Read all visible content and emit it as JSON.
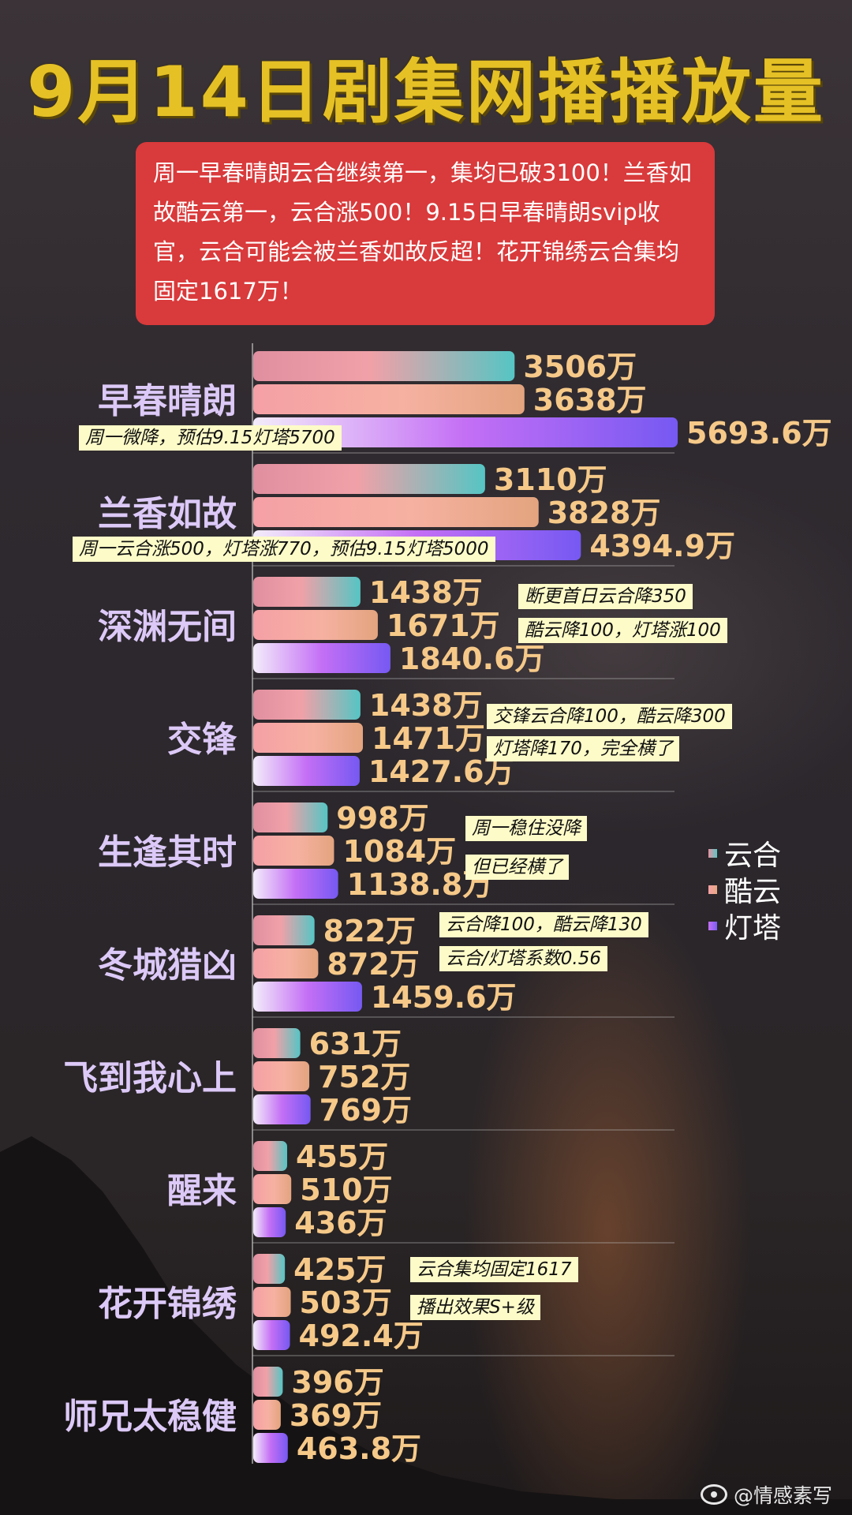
{
  "header": {
    "title": "9月14日剧集网播播放量",
    "summary": "周一早春晴朗云合继续第一，集均已破3100！兰香如故酷云第一，云合涨500！9.15日早春晴朗svip收官，云合可能会被兰香如故反超！花开锦绣云合集均固定1617万！"
  },
  "colors": {
    "yunhe": [
      "#e493a4",
      "#5dc6c4"
    ],
    "kuyun": [
      "#f5a1a6",
      "#e8a882"
    ],
    "dengta": [
      "#f1ebf8",
      "#c670f5",
      "#7a5cf3"
    ],
    "title": "#e6c126",
    "summary_bg": "#d93a3b",
    "note_bg": "#fdfbc8",
    "category_text": "#dcc9f7",
    "value_text": "#f6c989"
  },
  "chart_data": {
    "type": "bar",
    "orientation": "horizontal",
    "unit": "万",
    "categories": [
      "早春晴朗",
      "兰香如故",
      "深渊无间",
      "交锋",
      "生逢其时",
      "冬城猎凶",
      "飞到我心上",
      "醒来",
      "花开锦绣",
      "师兄太稳健"
    ],
    "series": [
      {
        "name": "云合",
        "values": [
          3506,
          3110,
          1438,
          1438,
          998,
          822,
          631,
          455,
          425,
          396
        ]
      },
      {
        "name": "酷云",
        "values": [
          3638,
          3828,
          1671,
          1471,
          1084,
          872,
          752,
          510,
          503,
          369
        ]
      },
      {
        "name": "灯塔",
        "values": [
          5693.6,
          4394.9,
          1840.6,
          1427.6,
          1138.8,
          1459.6,
          769,
          436,
          492.4,
          463.8
        ]
      }
    ],
    "value_labels": [
      [
        "3506万",
        "3638万",
        "5693.6万"
      ],
      [
        "3110万",
        "3828万",
        "4394.9万"
      ],
      [
        "1438万",
        "1671万",
        "1840.6万"
      ],
      [
        "1438万",
        "1471万",
        "1427.6万"
      ],
      [
        "998万",
        "1084万",
        "1138.8万"
      ],
      [
        "822万",
        "872万",
        "1459.6万"
      ],
      [
        "631万",
        "752万",
        "769万"
      ],
      [
        "455万",
        "510万",
        "436万"
      ],
      [
        "425万",
        "503万",
        "492.4万"
      ],
      [
        "396万",
        "369万",
        "463.8万"
      ]
    ],
    "legend": [
      "云合",
      "酷云",
      "灯塔"
    ],
    "legend_position": "right"
  },
  "notes": {
    "zaochun": "周一微降，预估9.15灯塔5700",
    "lanxiang": "周一云合涨500，灯塔涨770，预估9.15灯塔5000",
    "shenyuan_1": "断更首日云合降350",
    "shenyuan_2": "酷云降100，灯塔涨100",
    "jiaofeng_1": "交锋云合降100，酷云降300",
    "jiaofeng_2": "灯塔降170，完全横了",
    "shengfeng_1": "周一稳住没降",
    "shengfeng_2": "但已经横了",
    "dongcheng_1": "云合降100，酷云降130",
    "dongcheng_2": "云合/灯塔系数0.56",
    "huakai_1": "云合集均固定1617",
    "huakai_2": "播出效果S+级"
  },
  "credit": {
    "text": "@情感素写",
    "icon": "weibo-icon"
  }
}
